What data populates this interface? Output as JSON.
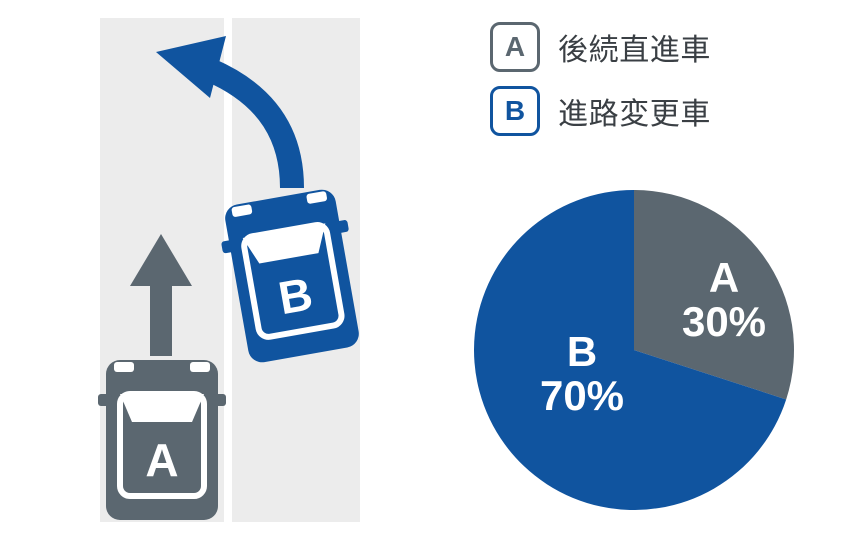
{
  "colors": {
    "gray": "#5b6770",
    "blue": "#10549f",
    "lane": "#ececec",
    "white": "#ffffff",
    "text": "#3a3f44"
  },
  "legend": {
    "a": {
      "letter": "A",
      "text": "後続直進車"
    },
    "b": {
      "letter": "B",
      "text": "進路変更車"
    }
  },
  "vehicles": {
    "a": {
      "label": "A"
    },
    "b": {
      "label": "B"
    }
  },
  "pie": {
    "type": "pie",
    "start_angle_deg": -90,
    "slices": [
      {
        "key": "a",
        "label": "A",
        "value": 30,
        "pct_text": "30%",
        "color": "#5b6770"
      },
      {
        "key": "b",
        "label": "B",
        "value": 70,
        "pct_text": "70%",
        "color": "#10549f"
      }
    ],
    "radius": 160,
    "background": "#ffffff"
  },
  "typography": {
    "legend_fontsize": 30,
    "badge_fontsize": 28,
    "pie_label_fontsize": 42
  }
}
